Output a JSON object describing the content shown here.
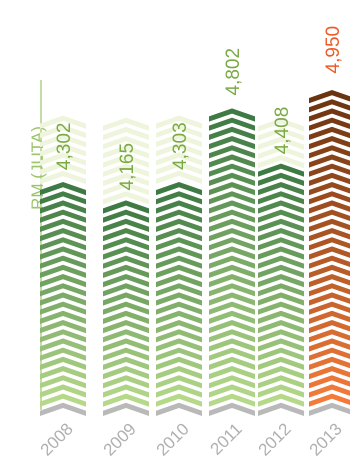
{
  "chart_data": {
    "type": "bar",
    "ylabel": "RM (JUTA)",
    "categories": [
      "2008",
      "2009",
      "2010",
      "2011",
      "2012",
      "2013"
    ],
    "values": [
      4302,
      4165,
      4303,
      4802,
      4408,
      4950
    ],
    "value_labels": [
      "4,302",
      "4,165",
      "4,303",
      "4,802",
      "4,408",
      "4,950"
    ],
    "highlight_category": "2013",
    "colors": {
      "green_top": "#3e7a43",
      "green_bottom": "#b5d889",
      "highlight_top": "#6b3410",
      "highlight_bottom": "#f47a3a",
      "highlight_label": "#f05a28",
      "label": "#7aaa44",
      "axis": "#9cc46a",
      "baseline_marker": "#b9b9b9",
      "ghost": "#eef5dc",
      "ghost_highlight": "#fdeede"
    }
  }
}
